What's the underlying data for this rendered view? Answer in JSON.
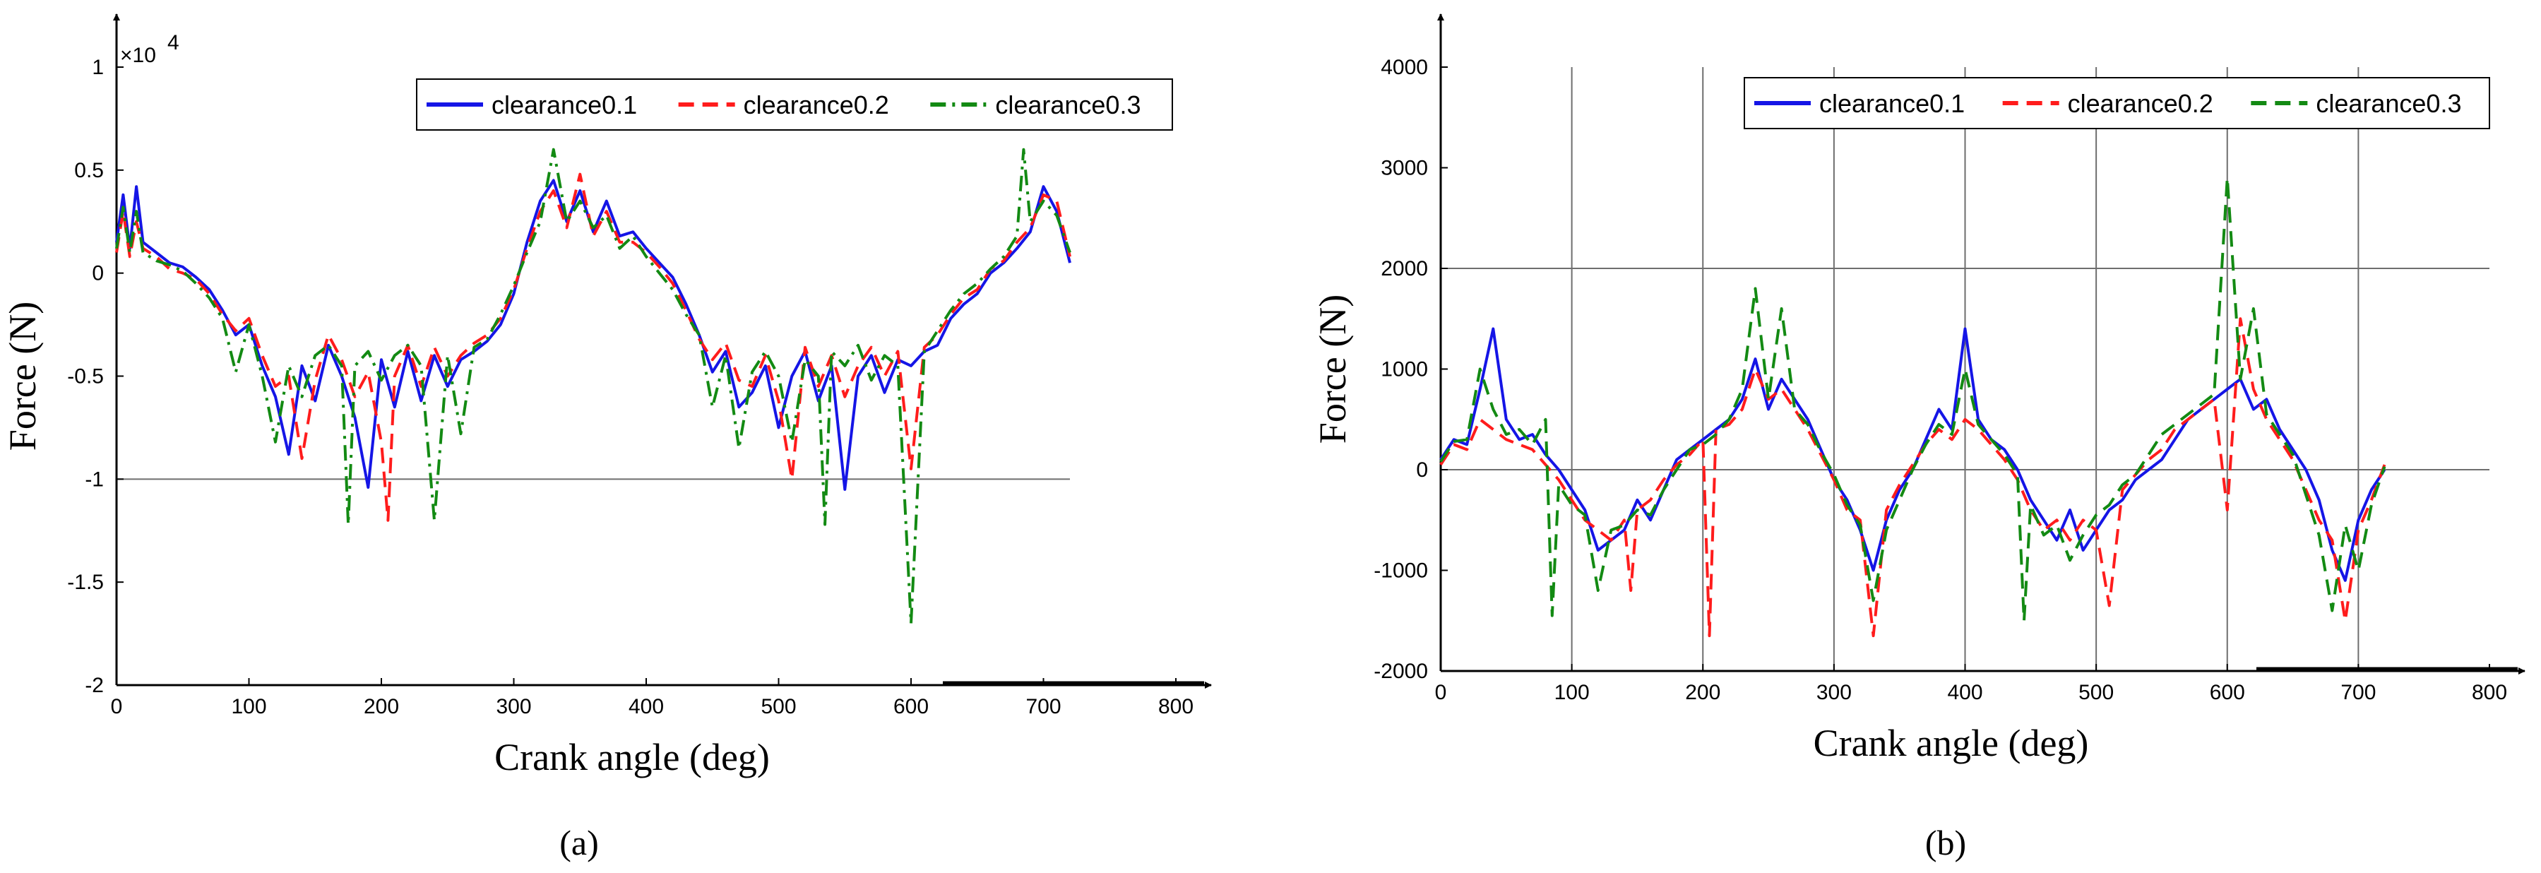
{
  "colors": {
    "clearance0.1": "#1515e6",
    "clearance0.2": "#ff1c1c",
    "clearance0.3": "#138a13",
    "axis": "#000000",
    "grid": "#6e6e6e"
  },
  "chart_data": [
    {
      "type": "line",
      "panel": "a",
      "caption": "(a)",
      "xlabel": "Crank angle (deg)",
      "ylabel": "Force (N)",
      "y_exponent_label": "×10",
      "y_exponent_power": "4",
      "xlim": [
        0,
        800
      ],
      "ylim": [
        -2,
        1
      ],
      "xticks": [
        0,
        100,
        200,
        300,
        400,
        500,
        600,
        700,
        800
      ],
      "yticks": [
        -2,
        -1.5,
        -1,
        -0.5,
        0,
        0.5,
        1
      ],
      "xtick_labels": [
        "0",
        "100",
        "200",
        "300",
        "400",
        "500",
        "600",
        "700",
        "800"
      ],
      "ytick_labels": [
        "-2",
        "-1.5",
        "-1",
        "-0.5",
        "0",
        "0.5",
        "1"
      ],
      "grid": "horizontal line at -1 only",
      "legend_position": "top-right",
      "series": [
        {
          "name": "clearance0.1",
          "style": "solid",
          "x": [
            0,
            5,
            10,
            15,
            20,
            30,
            40,
            50,
            60,
            70,
            80,
            90,
            100,
            110,
            120,
            130,
            140,
            150,
            160,
            170,
            180,
            190,
            200,
            210,
            220,
            230,
            240,
            250,
            260,
            270,
            280,
            290,
            300,
            310,
            320,
            330,
            340,
            350,
            360,
            370,
            380,
            390,
            400,
            410,
            420,
            430,
            440,
            450,
            460,
            470,
            480,
            490,
            500,
            510,
            520,
            530,
            540,
            550,
            560,
            570,
            580,
            590,
            600,
            610,
            620,
            630,
            640,
            650,
            660,
            670,
            680,
            690,
            700,
            710,
            720
          ],
          "y": [
            0.15,
            0.38,
            0.12,
            0.42,
            0.15,
            0.1,
            0.05,
            0.03,
            -0.02,
            -0.08,
            -0.18,
            -0.3,
            -0.25,
            -0.45,
            -0.6,
            -0.88,
            -0.45,
            -0.62,
            -0.35,
            -0.5,
            -0.7,
            -1.04,
            -0.42,
            -0.65,
            -0.38,
            -0.62,
            -0.4,
            -0.55,
            -0.42,
            -0.38,
            -0.33,
            -0.25,
            -0.1,
            0.15,
            0.35,
            0.45,
            0.25,
            0.4,
            0.2,
            0.35,
            0.18,
            0.2,
            0.12,
            0.05,
            -0.02,
            -0.15,
            -0.3,
            -0.48,
            -0.38,
            -0.65,
            -0.58,
            -0.45,
            -0.75,
            -0.5,
            -0.38,
            -0.62,
            -0.45,
            -1.05,
            -0.5,
            -0.4,
            -0.58,
            -0.42,
            -0.45,
            -0.38,
            -0.35,
            -0.22,
            -0.15,
            -0.1,
            0.0,
            0.05,
            0.12,
            0.2,
            0.42,
            0.3,
            0.05
          ]
        },
        {
          "name": "clearance0.2",
          "style": "dashed",
          "x": [
            0,
            5,
            10,
            15,
            20,
            30,
            40,
            50,
            60,
            70,
            80,
            90,
            100,
            110,
            120,
            130,
            140,
            150,
            160,
            170,
            180,
            190,
            200,
            205,
            210,
            220,
            230,
            240,
            250,
            260,
            270,
            280,
            290,
            300,
            310,
            320,
            330,
            340,
            350,
            360,
            370,
            380,
            390,
            400,
            410,
            420,
            430,
            440,
            450,
            460,
            470,
            480,
            490,
            500,
            510,
            520,
            530,
            540,
            550,
            560,
            570,
            580,
            590,
            600,
            610,
            620,
            630,
            640,
            650,
            660,
            670,
            680,
            690,
            700,
            710,
            720
          ],
          "y": [
            0.1,
            0.3,
            0.08,
            0.25,
            0.12,
            0.08,
            0.02,
            0.0,
            -0.03,
            -0.1,
            -0.2,
            -0.28,
            -0.22,
            -0.4,
            -0.55,
            -0.5,
            -0.9,
            -0.52,
            -0.3,
            -0.42,
            -0.6,
            -0.48,
            -0.82,
            -1.2,
            -0.5,
            -0.35,
            -0.55,
            -0.36,
            -0.5,
            -0.4,
            -0.34,
            -0.3,
            -0.22,
            -0.08,
            0.12,
            0.3,
            0.4,
            0.22,
            0.48,
            0.18,
            0.3,
            0.15,
            0.15,
            0.1,
            0.03,
            -0.05,
            -0.18,
            -0.32,
            -0.42,
            -0.34,
            -0.52,
            -0.55,
            -0.4,
            -0.62,
            -1.0,
            -0.36,
            -0.55,
            -0.4,
            -0.6,
            -0.45,
            -0.36,
            -0.5,
            -0.38,
            -0.95,
            -0.36,
            -0.3,
            -0.2,
            -0.12,
            -0.08,
            0.02,
            0.06,
            0.15,
            0.22,
            0.38,
            0.35,
            0.08
          ]
        },
        {
          "name": "clearance0.3",
          "style": "dashdot",
          "x": [
            0,
            5,
            10,
            15,
            20,
            30,
            40,
            50,
            60,
            70,
            80,
            90,
            100,
            110,
            120,
            130,
            140,
            150,
            160,
            170,
            175,
            180,
            190,
            200,
            210,
            220,
            230,
            240,
            250,
            260,
            270,
            280,
            290,
            300,
            310,
            320,
            330,
            340,
            350,
            360,
            370,
            380,
            390,
            400,
            410,
            420,
            430,
            440,
            450,
            460,
            470,
            480,
            490,
            500,
            510,
            520,
            530,
            535,
            540,
            550,
            560,
            570,
            580,
            590,
            600,
            610,
            620,
            630,
            640,
            650,
            660,
            670,
            680,
            685,
            690,
            700,
            710,
            720
          ],
          "y": [
            0.12,
            0.32,
            0.1,
            0.3,
            0.1,
            0.06,
            0.04,
            0.01,
            -0.05,
            -0.12,
            -0.22,
            -0.48,
            -0.25,
            -0.5,
            -0.82,
            -0.45,
            -0.6,
            -0.4,
            -0.35,
            -0.45,
            -1.22,
            -0.45,
            -0.38,
            -0.52,
            -0.4,
            -0.35,
            -0.45,
            -1.2,
            -0.4,
            -0.78,
            -0.36,
            -0.32,
            -0.2,
            -0.06,
            0.1,
            0.25,
            0.6,
            0.25,
            0.35,
            0.22,
            0.28,
            0.12,
            0.18,
            0.08,
            0.0,
            -0.08,
            -0.2,
            -0.3,
            -0.65,
            -0.4,
            -0.85,
            -0.48,
            -0.38,
            -0.5,
            -0.82,
            -0.42,
            -0.5,
            -1.22,
            -0.38,
            -0.45,
            -0.35,
            -0.52,
            -0.4,
            -0.45,
            -1.7,
            -0.38,
            -0.28,
            -0.18,
            -0.1,
            -0.05,
            0.02,
            0.08,
            0.18,
            0.6,
            0.25,
            0.35,
            0.28,
            0.1
          ]
        }
      ]
    },
    {
      "type": "line",
      "panel": "b",
      "caption": "(b)",
      "xlabel": "Crank angle (deg)",
      "ylabel": "Force (N)",
      "xlim": [
        0,
        800
      ],
      "ylim": [
        -2000,
        4000
      ],
      "xticks": [
        0,
        100,
        200,
        300,
        400,
        500,
        600,
        700,
        800
      ],
      "yticks": [
        -2000,
        -1000,
        0,
        1000,
        2000,
        3000,
        4000
      ],
      "xtick_labels": [
        "0",
        "100",
        "200",
        "300",
        "400",
        "500",
        "600",
        "700",
        "800"
      ],
      "ytick_labels": [
        "-2000",
        "-1000",
        "0",
        "1000",
        "2000",
        "3000",
        "4000"
      ],
      "grid": "vertical lines at 100–700; horizontal lines at 0 and 2000",
      "legend_position": "top-right",
      "series": [
        {
          "name": "clearance0.1",
          "style": "solid",
          "x": [
            0,
            10,
            20,
            30,
            40,
            50,
            60,
            70,
            80,
            90,
            100,
            110,
            120,
            130,
            140,
            150,
            160,
            170,
            180,
            190,
            200,
            210,
            220,
            230,
            240,
            250,
            260,
            270,
            280,
            290,
            300,
            310,
            320,
            330,
            340,
            350,
            360,
            370,
            380,
            390,
            400,
            410,
            420,
            430,
            440,
            450,
            460,
            470,
            480,
            490,
            500,
            510,
            520,
            530,
            540,
            550,
            560,
            570,
            580,
            590,
            600,
            610,
            620,
            630,
            640,
            650,
            660,
            670,
            680,
            690,
            700,
            710,
            720
          ],
          "y": [
            100,
            300,
            250,
            800,
            1400,
            500,
            300,
            350,
            150,
            0,
            -200,
            -400,
            -800,
            -700,
            -600,
            -300,
            -500,
            -200,
            100,
            200,
            300,
            400,
            500,
            700,
            1100,
            600,
            900,
            700,
            500,
            200,
            -100,
            -300,
            -600,
            -1000,
            -500,
            -200,
            0,
            300,
            600,
            400,
            1400,
            500,
            300,
            200,
            0,
            -300,
            -500,
            -700,
            -400,
            -800,
            -600,
            -400,
            -300,
            -100,
            0,
            100,
            300,
            500,
            600,
            700,
            800,
            900,
            600,
            700,
            400,
            200,
            0,
            -300,
            -800,
            -1100,
            -500,
            -200,
            0
          ]
        },
        {
          "name": "clearance0.2",
          "style": "dashed",
          "x": [
            0,
            10,
            20,
            30,
            40,
            50,
            60,
            70,
            80,
            90,
            100,
            110,
            120,
            130,
            140,
            145,
            150,
            160,
            170,
            180,
            190,
            200,
            205,
            210,
            220,
            230,
            240,
            250,
            260,
            270,
            280,
            290,
            300,
            310,
            320,
            330,
            340,
            350,
            360,
            370,
            380,
            390,
            400,
            410,
            420,
            430,
            440,
            450,
            460,
            470,
            480,
            490,
            500,
            510,
            520,
            530,
            540,
            550,
            560,
            570,
            580,
            590,
            600,
            610,
            620,
            630,
            640,
            650,
            660,
            670,
            680,
            690,
            700,
            710,
            720
          ],
          "y": [
            50,
            250,
            200,
            500,
            400,
            300,
            250,
            200,
            50,
            -100,
            -300,
            -500,
            -600,
            -700,
            -500,
            -1200,
            -400,
            -300,
            -100,
            50,
            150,
            300,
            -1650,
            400,
            450,
            600,
            1000,
            700,
            800,
            600,
            400,
            150,
            -100,
            -400,
            -500,
            -1650,
            -400,
            -150,
            50,
            250,
            400,
            300,
            500,
            400,
            250,
            100,
            -100,
            -400,
            -600,
            -500,
            -700,
            -500,
            -600,
            -1350,
            -200,
            -50,
            100,
            200,
            400,
            500,
            600,
            700,
            -400,
            1500,
            800,
            500,
            300,
            100,
            -200,
            -500,
            -700,
            -1500,
            -600,
            -300,
            50
          ]
        },
        {
          "name": "clearance0.3",
          "style": "dashed",
          "x": [
            0,
            10,
            20,
            30,
            40,
            50,
            60,
            70,
            80,
            85,
            90,
            100,
            110,
            120,
            130,
            140,
            150,
            160,
            170,
            180,
            190,
            200,
            210,
            220,
            230,
            240,
            250,
            260,
            270,
            280,
            290,
            300,
            310,
            320,
            330,
            340,
            350,
            360,
            370,
            380,
            390,
            400,
            410,
            420,
            430,
            440,
            445,
            450,
            460,
            470,
            480,
            490,
            500,
            510,
            520,
            530,
            540,
            550,
            560,
            570,
            580,
            590,
            600,
            610,
            620,
            630,
            640,
            650,
            660,
            670,
            680,
            690,
            700,
            710,
            720
          ],
          "y": [
            80,
            280,
            300,
            1000,
            600,
            350,
            400,
            250,
            500,
            -1450,
            -150,
            -350,
            -450,
            -1200,
            -600,
            -550,
            -400,
            -450,
            -200,
            0,
            200,
            250,
            350,
            500,
            800,
            1800,
            700,
            1600,
            600,
            450,
            180,
            -50,
            -350,
            -550,
            -1300,
            -600,
            -300,
            0,
            250,
            450,
            350,
            1000,
            450,
            300,
            150,
            -50,
            -1500,
            -350,
            -650,
            -550,
            -900,
            -650,
            -450,
            -350,
            -150,
            -50,
            150,
            350,
            450,
            550,
            650,
            750,
            2900,
            900,
            1600,
            550,
            350,
            150,
            -250,
            -650,
            -1400,
            -550,
            -1000,
            -350,
            30
          ]
        }
      ]
    }
  ]
}
